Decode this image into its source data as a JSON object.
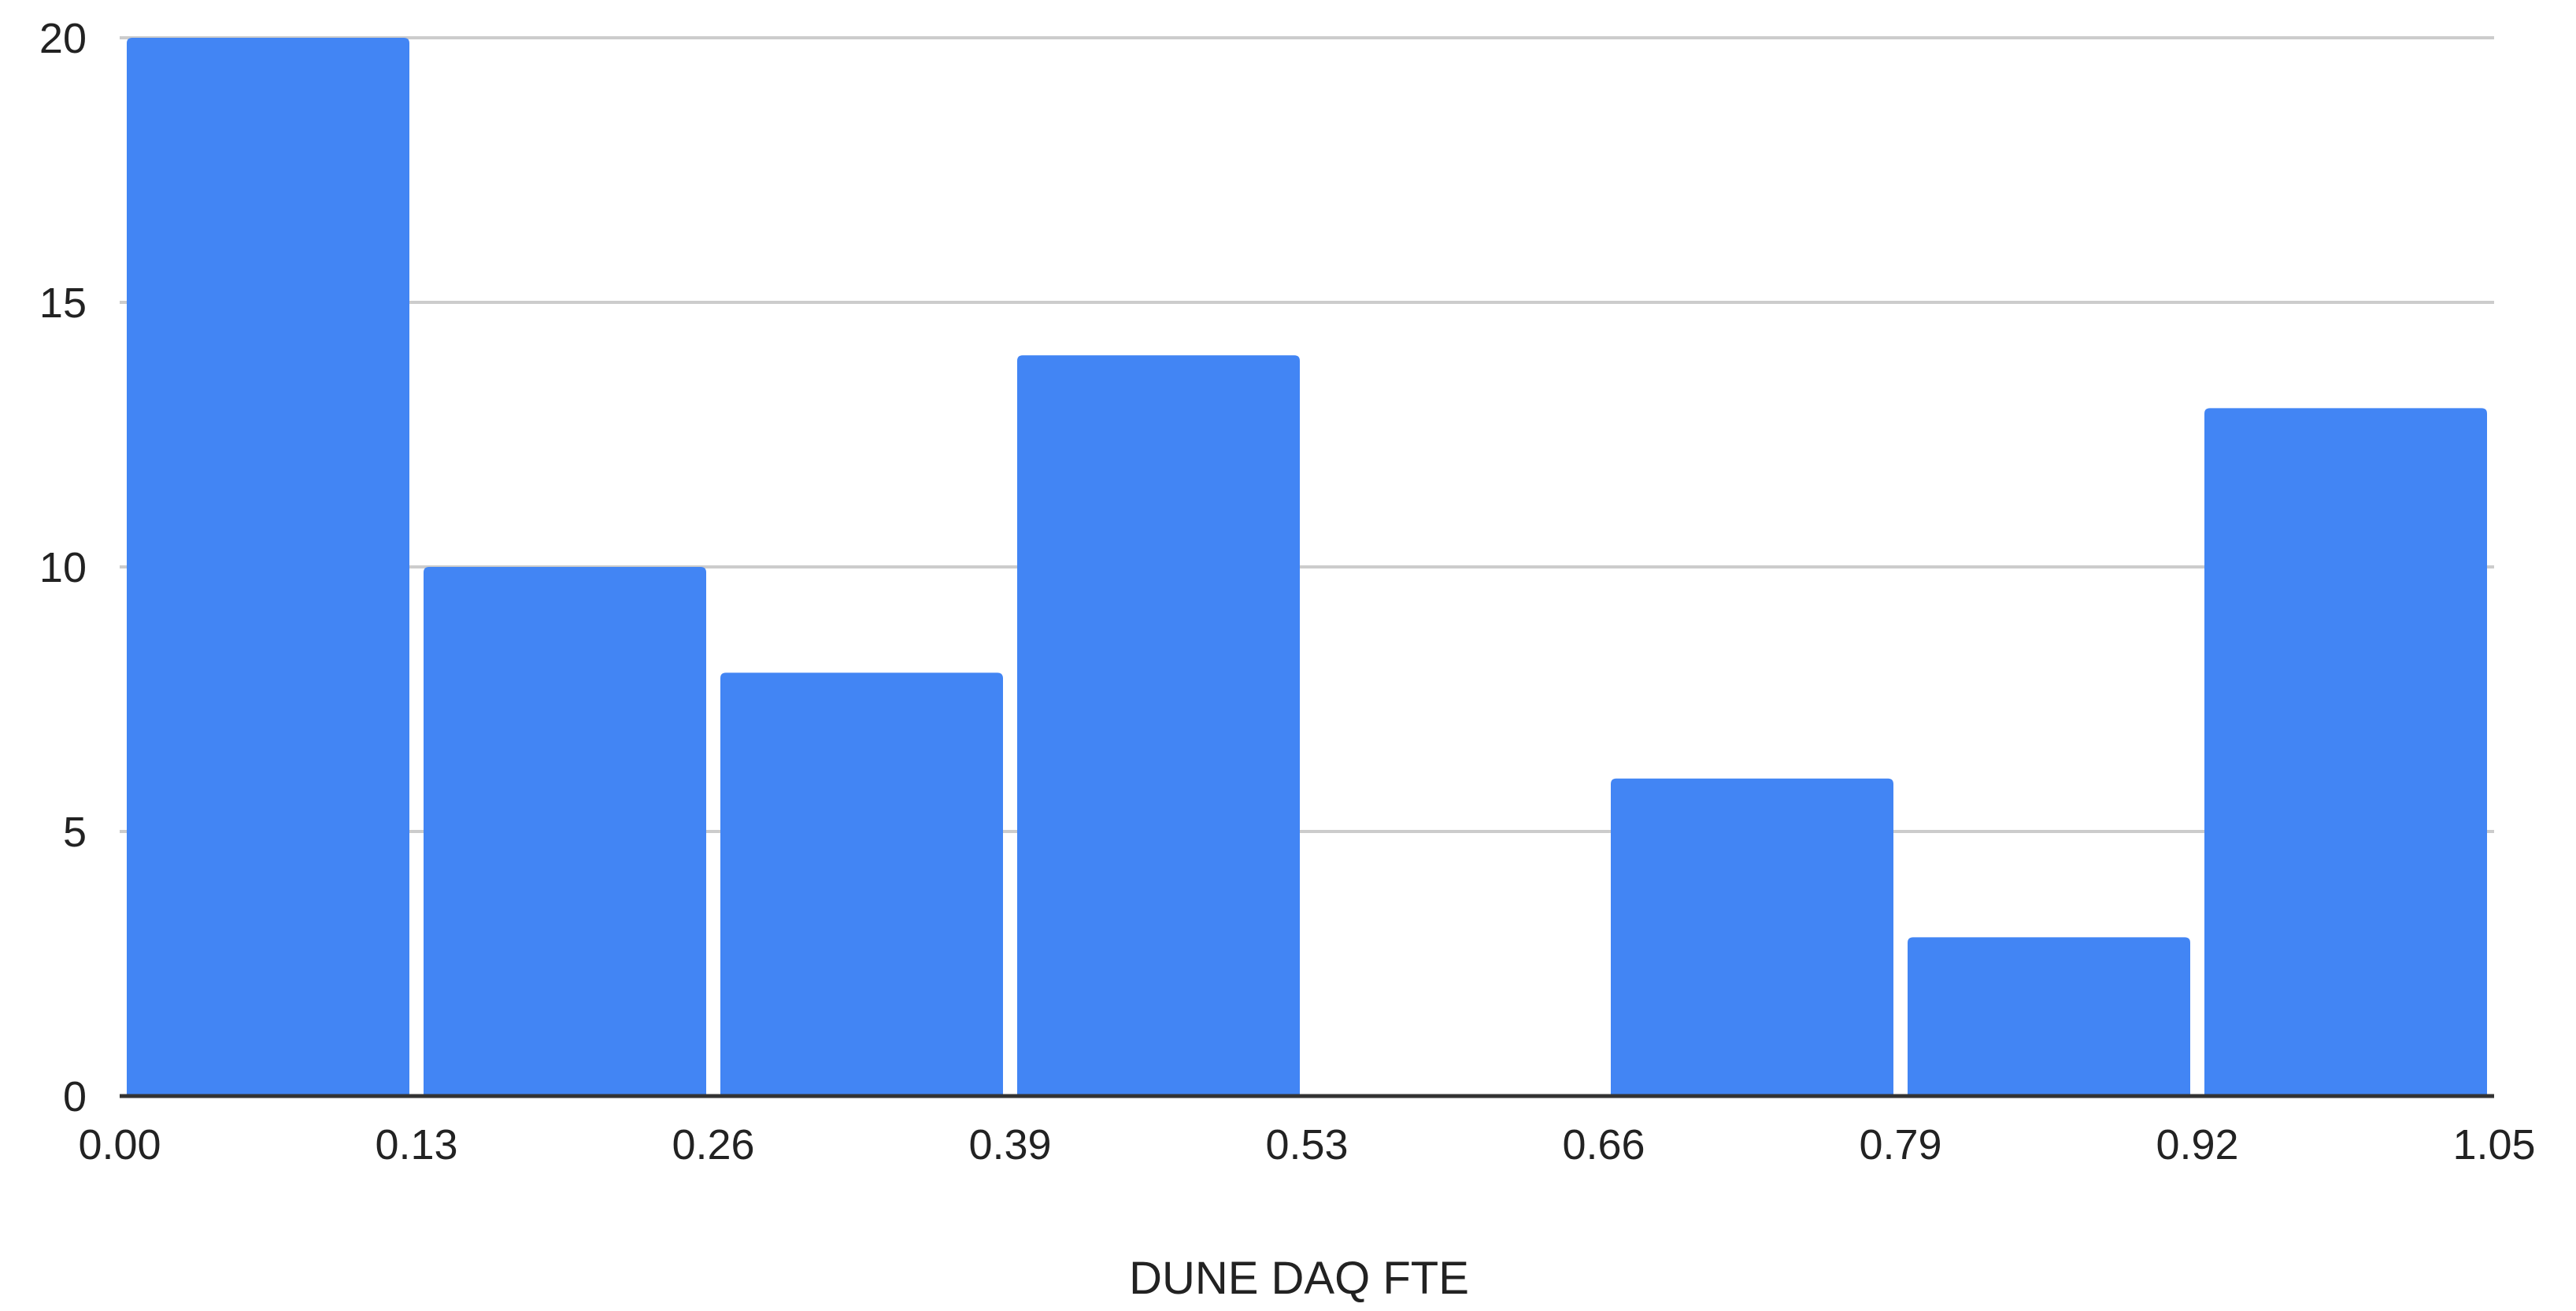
{
  "chart_data": {
    "type": "bar",
    "subtype": "histogram",
    "title": "",
    "xlabel": "DUNE DAQ FTE",
    "ylabel": "",
    "x_ticks": [
      "0.00",
      "0.13",
      "0.26",
      "0.39",
      "0.53",
      "0.66",
      "0.79",
      "0.92",
      "1.05"
    ],
    "y_ticks": [
      "0",
      "5",
      "10",
      "15",
      "20"
    ],
    "bins": [
      {
        "start": "0.00",
        "end": "0.13",
        "value": 20
      },
      {
        "start": "0.13",
        "end": "0.26",
        "value": 10
      },
      {
        "start": "0.26",
        "end": "0.39",
        "value": 8
      },
      {
        "start": "0.39",
        "end": "0.53",
        "value": 14
      },
      {
        "start": "0.53",
        "end": "0.66",
        "value": 0
      },
      {
        "start": "0.66",
        "end": "0.79",
        "value": 6
      },
      {
        "start": "0.79",
        "end": "0.92",
        "value": 3
      },
      {
        "start": "0.92",
        "end": "1.05",
        "value": 13
      }
    ],
    "values": [
      20,
      10,
      8,
      14,
      0,
      6,
      3,
      13
    ],
    "ylim": [
      0,
      20
    ],
    "grid": true,
    "legend": "none",
    "bar_color": "#4285f4",
    "grid_color": "#cccccc",
    "axis_color": "#333333"
  }
}
